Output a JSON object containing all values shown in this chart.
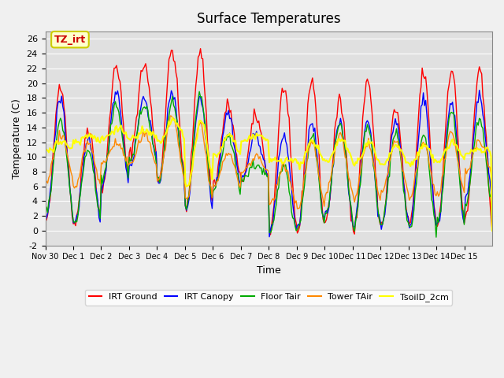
{
  "title": "Surface Temperatures",
  "xlabel": "Time",
  "ylabel": "Temperature (C)",
  "ylim": [
    -2,
    27
  ],
  "yticks": [
    -2,
    0,
    2,
    4,
    6,
    8,
    10,
    12,
    14,
    16,
    18,
    20,
    22,
    24,
    26
  ],
  "xtick_labels": [
    "Nov 30",
    "Dec 1",
    "Dec 2",
    "Dec 3",
    "Dec 4",
    "Dec 5",
    "Dec 6",
    "Dec 7",
    "Dec 8",
    "Dec 9",
    "Dec 10",
    "Dec 11",
    "Dec 12",
    "Dec 13",
    "Dec 14",
    "Dec 15"
  ],
  "annotation_text": "TZ_irt",
  "annotation_color": "#cc0000",
  "annotation_bg": "#ffffcc",
  "annotation_border": "#cccc00",
  "series_names": [
    "IRT Ground",
    "IRT Canopy",
    "Floor Tair",
    "Tower TAir",
    "TsoilD_2cm"
  ],
  "series_colors": [
    "#ff0000",
    "#0000ff",
    "#00aa00",
    "#ff8800",
    "#ffff00"
  ],
  "bg_color": "#e0e0e0",
  "n_days": 16
}
